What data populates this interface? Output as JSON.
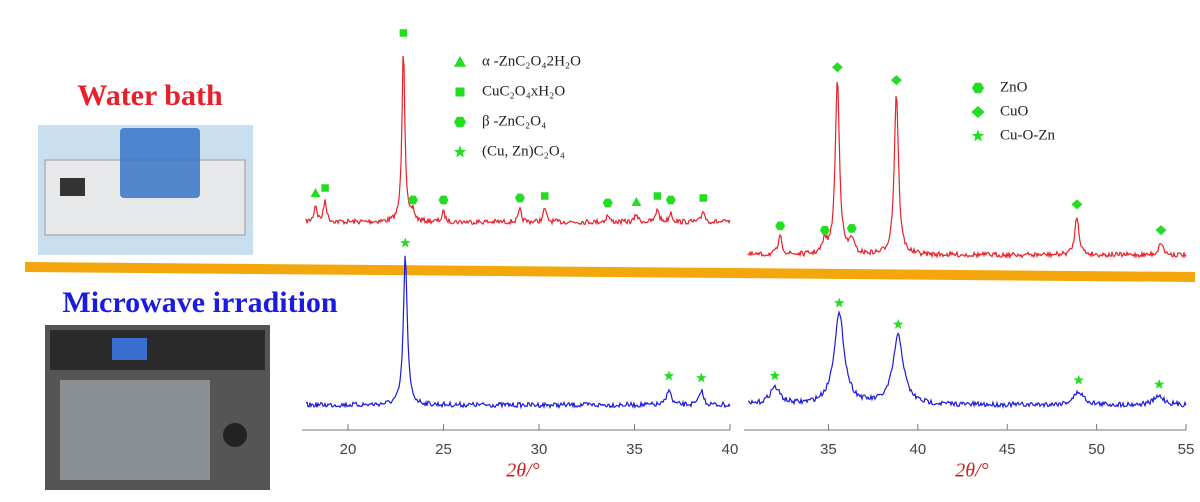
{
  "samples": [
    "Water bath",
    "Microwave irradition"
  ],
  "chart_data": [
    {
      "type": "line",
      "x_label": "2θ/°",
      "xlim": [
        17.8,
        40
      ],
      "xticks": [
        20,
        25,
        30,
        35,
        40
      ],
      "ylim": [
        0,
        180
      ],
      "legend": [
        {
          "label": "α -ZnC₂O₄2H₂O",
          "marker": "triangle"
        },
        {
          "label": "CuC₂O₄xH₂O",
          "marker": "square"
        },
        {
          "label": "β -ZnC₂O₄",
          "marker": "hexagon"
        },
        {
          "label": "(Cu, Zn)C₂O₄",
          "marker": "star"
        }
      ],
      "series": [
        {
          "sample": 0,
          "color": "#e8202a",
          "x": [
            18.3,
            18.8,
            22.9,
            23.4,
            25.0,
            29.0,
            30.3,
            33.6,
            35.1,
            36.2,
            36.9,
            38.6
          ],
          "values": [
            17,
            22,
            177,
            10,
            10,
            12,
            14,
            7,
            8,
            14,
            10,
            12
          ],
          "phase": [
            0,
            1,
            1,
            2,
            2,
            2,
            1,
            2,
            0,
            1,
            2,
            1
          ]
        },
        {
          "sample": 1,
          "color": "#1a1ae0",
          "x": [
            23.0,
            36.8,
            38.5
          ],
          "values": [
            150,
            17,
            15
          ],
          "phase": [
            3,
            3,
            3
          ]
        }
      ]
    },
    {
      "type": "line",
      "x_label": "2θ/°",
      "xlim": [
        30.5,
        55
      ],
      "xticks": [
        35,
        40,
        45,
        50,
        55
      ],
      "ylim": [
        0,
        210
      ],
      "legend": [
        {
          "label": "ZnO",
          "marker": "hexagon"
        },
        {
          "label": "CuO",
          "marker": "diamond"
        },
        {
          "label": "Cu-O-Zn",
          "marker": "star"
        }
      ],
      "series": [
        {
          "sample": 0,
          "color": "#e8202a",
          "x": [
            32.3,
            34.8,
            35.5,
            36.3,
            38.8,
            48.9,
            53.6
          ],
          "values": [
            20,
            15,
            205,
            17,
            190,
            45,
            15
          ],
          "phase": [
            0,
            0,
            1,
            0,
            1,
            1,
            1
          ]
        },
        {
          "sample": 1,
          "color": "#1a1ae0",
          "x": [
            32.0,
            35.6,
            38.9,
            49.0,
            53.5
          ],
          "values": [
            20,
            105,
            80,
            15,
            10
          ],
          "phase": [
            2,
            2,
            2,
            2,
            2
          ]
        }
      ]
    }
  ]
}
